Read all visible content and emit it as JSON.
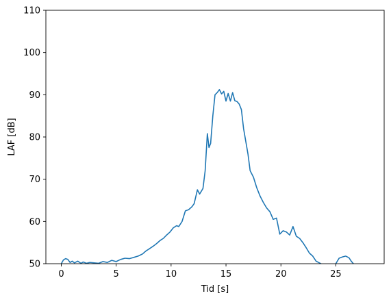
{
  "chart_data": {
    "type": "line",
    "title": "",
    "xlabel": "Tid [s]",
    "ylabel": "LAF [dB]",
    "xlim": [
      -1.4,
      29.4
    ],
    "ylim": [
      50,
      110
    ],
    "xticks": [
      0,
      5,
      10,
      15,
      20,
      25
    ],
    "yticks": [
      50,
      60,
      70,
      80,
      90,
      100,
      110
    ],
    "grid": false,
    "series": [
      {
        "color": "#1f77b4",
        "x": [
          0.0,
          0.2,
          0.4,
          0.6,
          0.8,
          1.0,
          1.2,
          1.5,
          1.8,
          2.0,
          2.3,
          2.6,
          3.0,
          3.4,
          3.8,
          4.2,
          4.6,
          5.0,
          5.4,
          5.8,
          6.2,
          6.6,
          7.0,
          7.4,
          7.7,
          8.0,
          8.4,
          8.7,
          9.0,
          9.3,
          9.6,
          9.9,
          10.2,
          10.5,
          10.7,
          11.0,
          11.3,
          11.6,
          11.9,
          12.1,
          12.4,
          12.6,
          12.9,
          13.1,
          13.3,
          13.45,
          13.6,
          13.8,
          14.0,
          14.2,
          14.4,
          14.6,
          14.8,
          15.0,
          15.2,
          15.4,
          15.6,
          15.8,
          16.0,
          16.2,
          16.4,
          16.6,
          16.8,
          17.0,
          17.2,
          17.5,
          17.8,
          18.1,
          18.4,
          18.7,
          19.0,
          19.3,
          19.6,
          19.9,
          20.2,
          20.5,
          20.8,
          21.1,
          21.4,
          21.7,
          22.0,
          22.3,
          22.6,
          22.9,
          23.2,
          23.5,
          23.7,
          25.0,
          25.3,
          25.6,
          25.9,
          26.2,
          26.4,
          26.6
        ],
        "y": [
          50.0,
          50.9,
          51.2,
          51.0,
          50.3,
          50.6,
          50.2,
          50.6,
          50.1,
          50.4,
          50.1,
          50.3,
          50.2,
          50.1,
          50.5,
          50.3,
          50.8,
          50.5,
          51.0,
          51.3,
          51.2,
          51.5,
          51.8,
          52.3,
          53.0,
          53.5,
          54.2,
          54.8,
          55.5,
          56.0,
          56.8,
          57.5,
          58.5,
          59.0,
          58.8,
          60.0,
          62.5,
          62.8,
          63.5,
          64.2,
          67.5,
          66.5,
          67.8,
          72.0,
          80.8,
          77.5,
          78.5,
          85.0,
          90.0,
          90.5,
          91.2,
          90.2,
          90.8,
          88.5,
          90.3,
          88.5,
          90.5,
          88.6,
          88.4,
          87.8,
          86.5,
          82.0,
          79.0,
          76.0,
          72.0,
          70.5,
          68.0,
          66.0,
          64.5,
          63.2,
          62.3,
          60.5,
          60.8,
          57.0,
          57.8,
          57.5,
          56.8,
          58.8,
          56.5,
          56.0,
          55.0,
          53.8,
          52.5,
          51.8,
          50.6,
          50.2,
          49.9,
          50.0,
          51.3,
          51.6,
          51.8,
          51.4,
          50.6,
          50.0
        ]
      }
    ]
  }
}
